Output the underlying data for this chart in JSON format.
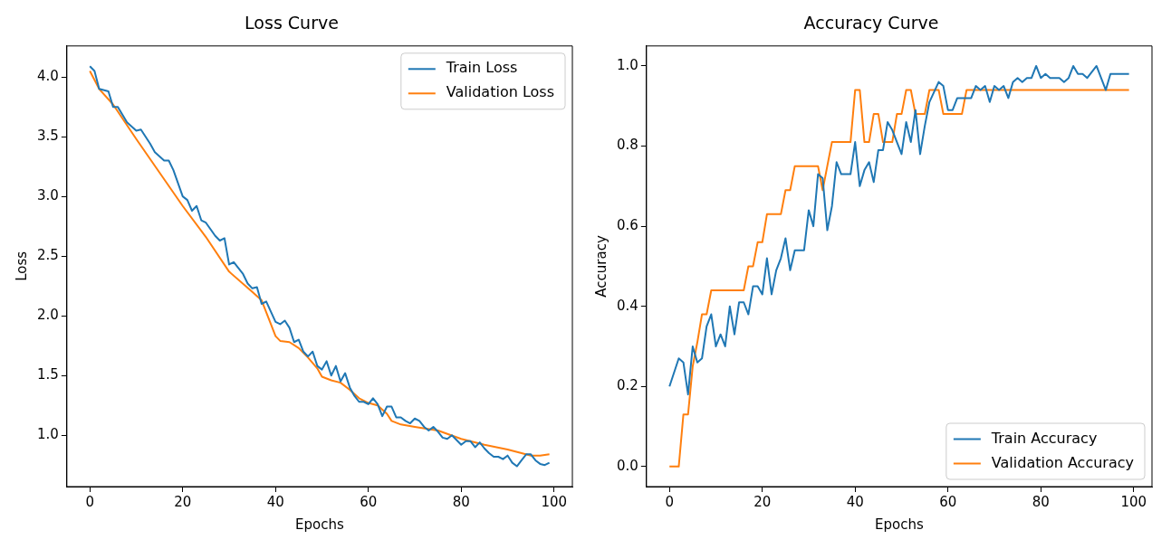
{
  "chart_data": [
    {
      "type": "line",
      "title": "Loss Curve",
      "xlabel": "Epochs",
      "ylabel": "Loss",
      "xlim": [
        -4.95,
        103.95
      ],
      "xticks": [
        0,
        20,
        40,
        60,
        80,
        100
      ],
      "ylim": [
        0.57,
        4.26
      ],
      "yticks": [
        {
          "value": 1,
          "label": "1.0"
        },
        1.5,
        {
          "value": 2,
          "label": "2.0"
        },
        2.5,
        {
          "value": 3,
          "label": "3.0"
        },
        3.5,
        {
          "value": 4,
          "label": "4.0"
        }
      ],
      "legend": "top right",
      "marker": "none",
      "series": [
        {
          "name": "Train Loss",
          "color": "#1f77b4",
          "x": [
            0,
            1,
            2,
            4,
            5,
            6,
            8,
            10,
            11,
            13,
            14,
            16,
            17,
            18,
            20,
            21,
            22,
            23,
            24,
            25,
            27,
            28,
            29,
            30,
            31,
            33,
            34,
            35,
            36,
            37,
            38,
            40,
            41,
            42,
            43,
            44,
            45,
            46,
            47,
            48,
            49,
            50,
            51,
            52,
            53,
            54,
            55,
            56,
            57,
            58,
            59,
            60,
            61,
            62,
            63,
            64,
            65,
            66,
            67,
            68,
            69,
            70,
            71,
            72,
            73,
            74,
            75,
            76,
            77,
            78,
            79,
            80,
            81,
            82,
            83,
            84,
            85,
            86,
            87,
            88,
            89,
            90,
            91,
            92,
            93,
            94,
            95,
            96,
            97,
            98,
            99
          ],
          "values": [
            4.09,
            4.05,
            3.9,
            3.88,
            3.75,
            3.75,
            3.62,
            3.55,
            3.56,
            3.44,
            3.37,
            3.3,
            3.3,
            3.22,
            3.0,
            2.97,
            2.88,
            2.92,
            2.8,
            2.78,
            2.67,
            2.63,
            2.65,
            2.43,
            2.45,
            2.35,
            2.27,
            2.23,
            2.24,
            2.1,
            2.12,
            1.95,
            1.93,
            1.96,
            1.9,
            1.78,
            1.8,
            1.7,
            1.66,
            1.7,
            1.58,
            1.55,
            1.62,
            1.5,
            1.58,
            1.45,
            1.52,
            1.4,
            1.33,
            1.28,
            1.28,
            1.26,
            1.31,
            1.26,
            1.16,
            1.24,
            1.24,
            1.15,
            1.15,
            1.12,
            1.1,
            1.14,
            1.12,
            1.07,
            1.04,
            1.07,
            1.03,
            0.98,
            0.97,
            1.0,
            0.96,
            0.92,
            0.95,
            0.95,
            0.9,
            0.94,
            0.89,
            0.85,
            0.82,
            0.82,
            0.8,
            0.83,
            0.77,
            0.74,
            0.79,
            0.84,
            0.84,
            0.79,
            0.76,
            0.75,
            0.77
          ]
        },
        {
          "name": "Validation Loss",
          "color": "#ff7f0e",
          "x": [
            0,
            2,
            5,
            10,
            15,
            20,
            25,
            30,
            35,
            37,
            39,
            40,
            41,
            43,
            45,
            47,
            49,
            50,
            52,
            54,
            56,
            58,
            60,
            62,
            64,
            65,
            67,
            70,
            75,
            80,
            85,
            90,
            93,
            95,
            97,
            99
          ],
          "values": [
            4.05,
            3.9,
            3.77,
            3.48,
            3.2,
            2.92,
            2.66,
            2.37,
            2.2,
            2.13,
            1.93,
            1.83,
            1.79,
            1.78,
            1.73,
            1.65,
            1.56,
            1.49,
            1.46,
            1.44,
            1.38,
            1.31,
            1.27,
            1.25,
            1.18,
            1.12,
            1.09,
            1.07,
            1.04,
            0.97,
            0.92,
            0.88,
            0.85,
            0.83,
            0.83,
            0.84
          ]
        }
      ]
    },
    {
      "type": "line",
      "title": "Accuracy Curve",
      "xlabel": "Epochs",
      "ylabel": "Accuracy",
      "xlim": [
        -4.95,
        103.95
      ],
      "xticks": [
        0,
        20,
        40,
        60,
        80,
        100
      ],
      "ylim": [
        -0.05,
        1.05
      ],
      "yticks": [
        {
          "value": 0,
          "label": "0.0"
        },
        0.2,
        0.4,
        0.6,
        0.8,
        {
          "value": 1,
          "label": "1.0"
        }
      ],
      "legend": "bottom right",
      "marker": "none",
      "series": [
        {
          "name": "Train Accuracy",
          "color": "#1f77b4",
          "x": [
            0,
            2,
            3,
            4,
            5,
            6,
            7,
            8,
            9,
            10,
            11,
            12,
            13,
            14,
            15,
            16,
            17,
            18,
            19,
            20,
            21,
            22,
            23,
            24,
            25,
            26,
            27,
            28,
            29,
            30,
            31,
            32,
            33,
            34,
            35,
            36,
            37,
            38,
            39,
            40,
            41,
            42,
            43,
            44,
            45,
            46,
            47,
            48,
            50,
            51,
            52,
            53,
            54,
            55,
            56,
            58,
            59,
            60,
            61,
            62,
            65,
            66,
            67,
            68,
            69,
            70,
            71,
            72,
            73,
            74,
            75,
            76,
            77,
            78,
            79,
            80,
            81,
            82,
            84,
            85,
            86,
            87,
            88,
            89,
            90,
            92,
            94,
            95,
            99
          ],
          "values": [
            0.2,
            0.27,
            0.26,
            0.18,
            0.3,
            0.26,
            0.27,
            0.35,
            0.38,
            0.3,
            0.33,
            0.3,
            0.4,
            0.33,
            0.41,
            0.41,
            0.38,
            0.45,
            0.45,
            0.43,
            0.52,
            0.43,
            0.49,
            0.52,
            0.57,
            0.49,
            0.54,
            0.54,
            0.54,
            0.64,
            0.6,
            0.73,
            0.72,
            0.59,
            0.65,
            0.76,
            0.73,
            0.73,
            0.73,
            0.81,
            0.7,
            0.74,
            0.76,
            0.71,
            0.79,
            0.79,
            0.86,
            0.84,
            0.78,
            0.86,
            0.81,
            0.89,
            0.78,
            0.85,
            0.91,
            0.96,
            0.95,
            0.89,
            0.89,
            0.92,
            0.92,
            0.95,
            0.94,
            0.95,
            0.91,
            0.95,
            0.94,
            0.95,
            0.92,
            0.96,
            0.97,
            0.96,
            0.97,
            0.97,
            1.0,
            0.97,
            0.98,
            0.97,
            0.97,
            0.96,
            0.97,
            1.0,
            0.98,
            0.98,
            0.97,
            1.0,
            0.94,
            0.98,
            0.98
          ]
        },
        {
          "name": "Validation Accuracy",
          "color": "#ff7f0e",
          "x": [
            0,
            1,
            2,
            3,
            4,
            5,
            6,
            7,
            8,
            9,
            16,
            17,
            18,
            19,
            20,
            21,
            24,
            25,
            26,
            27,
            32,
            33,
            34,
            35,
            39,
            40,
            41,
            42,
            43,
            44,
            45,
            46,
            48,
            49,
            50,
            51,
            52,
            53,
            55,
            56,
            58,
            59,
            63,
            64,
            99
          ],
          "values": [
            0,
            0,
            0,
            0.13,
            0.13,
            0.25,
            0.31,
            0.38,
            0.38,
            0.44,
            0.44,
            0.5,
            0.5,
            0.56,
            0.56,
            0.63,
            0.63,
            0.69,
            0.69,
            0.75,
            0.75,
            0.69,
            0.75,
            0.81,
            0.81,
            0.94,
            0.94,
            0.81,
            0.81,
            0.88,
            0.88,
            0.81,
            0.81,
            0.88,
            0.88,
            0.94,
            0.94,
            0.88,
            0.88,
            0.94,
            0.94,
            0.88,
            0.88,
            0.94,
            0.94
          ]
        }
      ]
    }
  ]
}
